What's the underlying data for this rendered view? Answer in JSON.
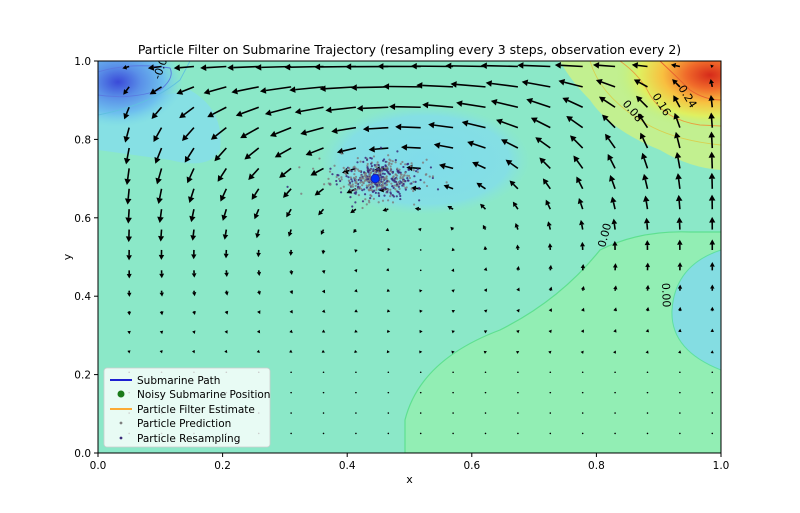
{
  "chart_data": {
    "type": "quiver",
    "title": "Particle Filter on Submarine Trajectory (resampling every 3 steps, observation every 2)",
    "xlabel": "x",
    "ylabel": "y",
    "xlim": [
      0.0,
      1.0
    ],
    "ylim": [
      0.0,
      1.0
    ],
    "x_ticks": [
      "0.0",
      "0.2",
      "0.4",
      "0.6",
      "0.8",
      "1.0"
    ],
    "y_ticks": [
      "0.0",
      "0.2",
      "0.4",
      "0.6",
      "0.8",
      "1.0"
    ],
    "grid": false,
    "legend_position": "lower-left",
    "contour_labels": [
      "-0.08",
      "0.16",
      "0.24",
      "0.08",
      "0.00",
      "0.00"
    ],
    "legend": [
      {
        "label": "Submarine Path",
        "kind": "line",
        "color": "#0000cc"
      },
      {
        "label": "Noisy Submarine Position",
        "kind": "dot",
        "color": "#1a7a1a"
      },
      {
        "label": "Particle Filter Estimate",
        "kind": "line",
        "color": "#ff9f1a"
      },
      {
        "label": "Particle Prediction",
        "kind": "small-dot",
        "color": "#7f7f7f"
      },
      {
        "label": "Particle Resampling",
        "kind": "small-dot",
        "color": "#3b2a7a"
      }
    ],
    "particle_cloud": {
      "center": [
        0.445,
        0.7
      ],
      "spread": [
        0.035,
        0.025
      ],
      "count": 500
    },
    "submarine_position": [
      0.445,
      0.7
    ],
    "colors": {
      "background": "#8be8c8",
      "path": "#0000cc",
      "particle_prediction": "#7f7f7f",
      "particle_resampling": "#3b2a7a",
      "arrow": "#000000"
    }
  }
}
